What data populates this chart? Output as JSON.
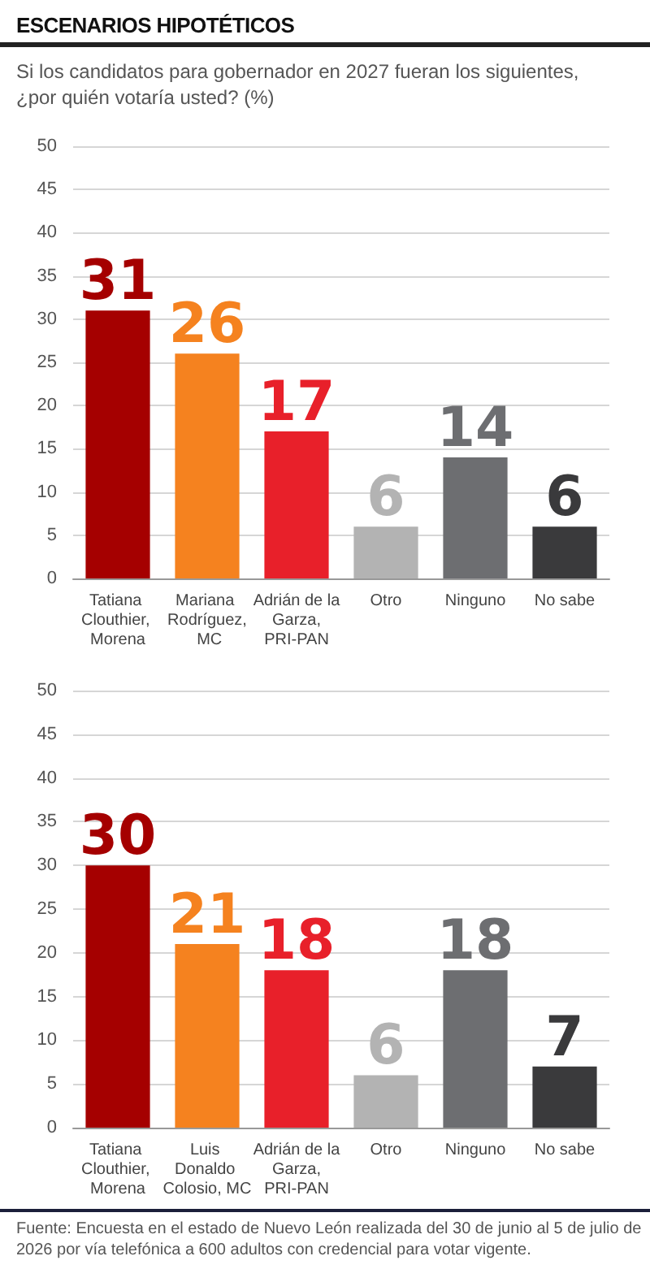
{
  "chart_data": [
    {
      "type": "bar",
      "title": "ESCENARIOS HIPOTÉTICOS",
      "subtitle": "Si los candidatos para gobernador en 2027 fueran los siguientes, ¿por quién votaría usted?   (%)",
      "categories": [
        "Tatiana Clouthier, Morena",
        "Mariana Rodríguez, MC",
        "Adrián de la Garza, PRI-PAN",
        "Otro",
        "Ninguno",
        "No sabe"
      ],
      "values": [
        31,
        26,
        17,
        6,
        14,
        6
      ],
      "colors": [
        "#a50000",
        "#f5821f",
        "#e8202a",
        "#b3b3b3",
        "#6d6e71",
        "#3a3a3c"
      ],
      "ylim": [
        0,
        50
      ],
      "yticks": [
        0,
        5,
        10,
        15,
        20,
        25,
        30,
        35,
        40,
        45,
        50
      ],
      "grid": "y",
      "data_labels": true
    },
    {
      "type": "bar",
      "categories": [
        "Tatiana Clouthier, Morena",
        "Luis Donaldo Colosio, MC",
        "Adrián de la Garza, PRI-PAN",
        "Otro",
        "Ninguno",
        "No sabe"
      ],
      "values": [
        30,
        21,
        18,
        6,
        18,
        7
      ],
      "colors": [
        "#a50000",
        "#f5821f",
        "#e8202a",
        "#b3b3b3",
        "#6d6e71",
        "#3a3a3c"
      ],
      "ylim": [
        0,
        50
      ],
      "yticks": [
        0,
        5,
        10,
        15,
        20,
        25,
        30,
        35,
        40,
        45,
        50
      ],
      "grid": "y",
      "data_labels": true,
      "annotations": [
        "Fuente: Encuesta en el estado de Nuevo León realizada del 30 de junio al 5 de julio de 2026 por vía telefónica a 600 adultos con credencial para votar vigente."
      ]
    }
  ]
}
